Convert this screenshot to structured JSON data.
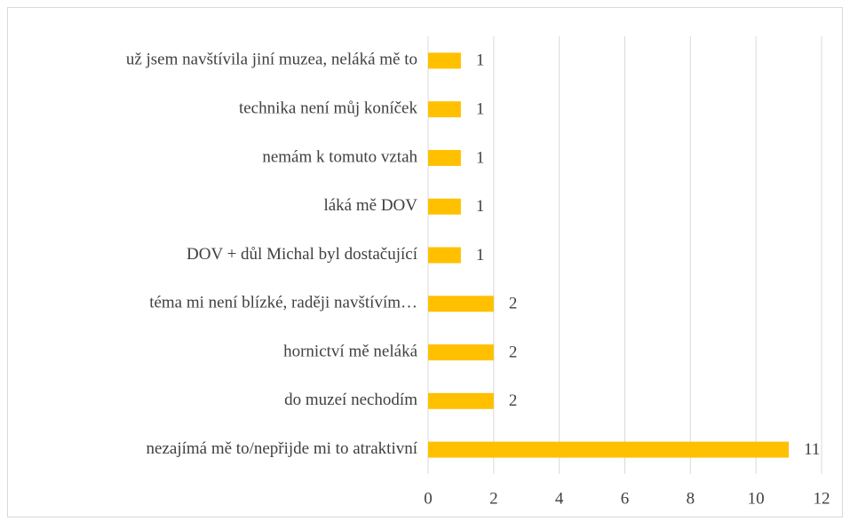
{
  "chart_data": {
    "type": "bar",
    "orientation": "horizontal",
    "categories": [
      "už jsem navštívila jiní muzea, neláká mě to",
      "technika není můj koníček",
      "nemám k tomuto vztah",
      "láká mě DOV",
      "DOV + důl Michal byl dostačující",
      "téma mi není blízké, raději navštívím…",
      "hornictví mě neláká",
      "do muzeí nechodím",
      "nezajímá mě to/nepřijde mi to atraktivní"
    ],
    "values": [
      1,
      1,
      1,
      1,
      1,
      2,
      2,
      2,
      11
    ],
    "color": "#ffc000",
    "xlim": [
      0,
      12
    ],
    "xticks": [
      0,
      2,
      4,
      6,
      8,
      10,
      12
    ],
    "grid": true
  }
}
